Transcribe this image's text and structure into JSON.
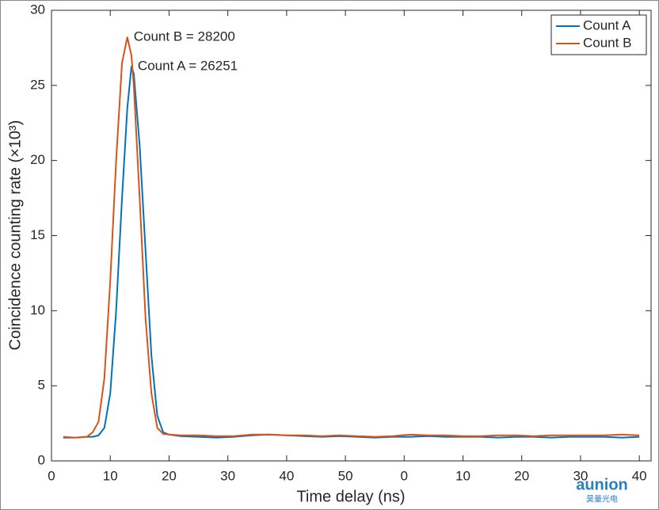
{
  "chart_data": {
    "type": "line",
    "xlabel": "Time delay (ns)",
    "ylabel": "Coincidence counting rate (×10³)",
    "x": [
      2,
      4,
      6,
      7,
      8,
      9,
      10,
      11,
      12,
      12.9,
      13.6,
      14,
      15,
      16,
      17,
      18,
      19,
      20,
      22,
      25,
      28,
      31,
      34,
      37,
      40,
      43,
      46,
      49,
      52,
      55,
      58,
      61,
      64,
      67,
      70,
      73,
      76,
      79,
      82,
      85,
      88,
      91,
      94,
      97,
      100
    ],
    "series": [
      {
        "name": "Count A",
        "color": "#0072BD",
        "annotation": "Count A = 26251",
        "values": [
          1.55,
          1.55,
          1.6,
          1.6,
          1.7,
          2.2,
          4.5,
          10,
          17.5,
          23.5,
          26.25,
          25.8,
          21,
          14,
          7,
          3,
          1.9,
          1.75,
          1.65,
          1.6,
          1.55,
          1.6,
          1.7,
          1.75,
          1.7,
          1.65,
          1.6,
          1.65,
          1.6,
          1.55,
          1.6,
          1.6,
          1.65,
          1.6,
          1.6,
          1.6,
          1.55,
          1.6,
          1.6,
          1.55,
          1.6,
          1.6,
          1.6,
          1.55,
          1.6
        ]
      },
      {
        "name": "Count B",
        "color": "#D95319",
        "annotation": "Count B = 28200",
        "values": [
          1.6,
          1.55,
          1.6,
          1.9,
          2.6,
          5.5,
          12,
          20,
          26.5,
          28.2,
          27,
          25,
          17.5,
          9.5,
          4.5,
          2.2,
          1.8,
          1.75,
          1.7,
          1.7,
          1.65,
          1.65,
          1.75,
          1.75,
          1.7,
          1.7,
          1.65,
          1.7,
          1.65,
          1.6,
          1.65,
          1.75,
          1.7,
          1.7,
          1.65,
          1.65,
          1.7,
          1.7,
          1.65,
          1.7,
          1.7,
          1.7,
          1.7,
          1.75,
          1.7
        ]
      }
    ],
    "xlim": [
      0,
      102
    ],
    "xticks": [
      0,
      10,
      20,
      30,
      40,
      50,
      {
        "value": 60,
        "label": "0"
      },
      {
        "value": 70,
        "label": "10"
      },
      {
        "value": 80,
        "label": "20"
      },
      {
        "value": 90,
        "label": "30"
      },
      {
        "value": 100,
        "label": "40"
      }
    ],
    "ylim": [
      0,
      30
    ],
    "yticks": [
      0,
      5,
      10,
      15,
      20,
      25,
      30
    ],
    "grid": false,
    "legend": "top-right"
  },
  "watermark": {
    "logo": "aunion",
    "subtitle": "昊量光电"
  }
}
